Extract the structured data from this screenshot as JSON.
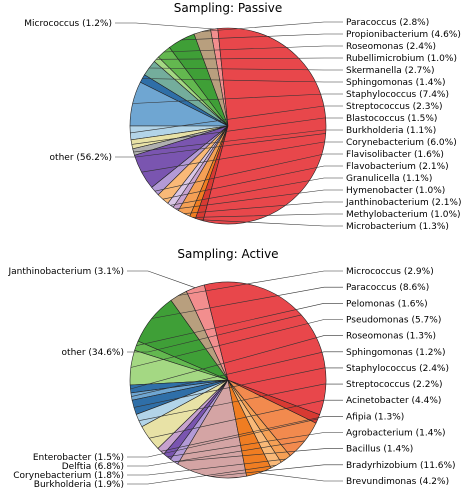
{
  "chart_data": [
    {
      "type": "pie",
      "title": "Sampling: Passive",
      "start_angle_deg": 96,
      "slices": [
        {
          "label": "Micrococcus (1.2%)",
          "value": 1.2,
          "color": "#f28e8e",
          "side": "left"
        },
        {
          "label": "Paracoccus (2.8%)",
          "value": 2.8,
          "color": "#b89f7e",
          "side": "right"
        },
        {
          "label": "Propionibacterium (4.6%)",
          "value": 4.6,
          "color": "#3f9f37",
          "side": "right"
        },
        {
          "label": "Roseomonas (2.4%)",
          "value": 2.4,
          "color": "#63b84f",
          "side": "right"
        },
        {
          "label": "Rubellimicrobium (1.0%)",
          "value": 1.0,
          "color": "#a4d883",
          "side": "right"
        },
        {
          "label": "Skermanella (2.7%)",
          "value": 2.7,
          "color": "#74ad9c",
          "side": "right"
        },
        {
          "label": "Sphingomonas (1.4%)",
          "value": 1.4,
          "color": "#2f6fa8",
          "side": "right"
        },
        {
          "label": "Staphylococcus (7.4%)",
          "value": 7.4,
          "color": "#6fa6d2",
          "side": "right"
        },
        {
          "label": "Streptococcus (2.3%)",
          "value": 2.3,
          "color": "#b2d4e8",
          "side": "right"
        },
        {
          "label": "Blastococcus (1.5%)",
          "value": 1.5,
          "color": "#e8e2a6",
          "side": "right"
        },
        {
          "label": "Burkholderia (1.1%)",
          "value": 1.1,
          "color": "#b0b0b0",
          "side": "right"
        },
        {
          "label": "Corynebacterium (6.0%)",
          "value": 6.0,
          "color": "#7a55b0",
          "side": "right"
        },
        {
          "label": "Flavisolibacter (1.6%)",
          "value": 1.6,
          "color": "#b39ad6",
          "side": "right"
        },
        {
          "label": "Flavobacterium (2.1%)",
          "value": 2.1,
          "color": "#f9b978",
          "side": "right"
        },
        {
          "label": "Granulicella (1.1%)",
          "value": 1.1,
          "color": "#d9c6e6",
          "side": "right"
        },
        {
          "label": "Hymenobacter (1.0%)",
          "value": 1.0,
          "color": "#c7a2cf",
          "side": "right"
        },
        {
          "label": "Janthinobacterium (2.1%)",
          "value": 2.1,
          "color": "#f5a055",
          "side": "right"
        },
        {
          "label": "Methylobacterium (1.0%)",
          "value": 1.0,
          "color": "#f07d22",
          "side": "right"
        },
        {
          "label": "Microbacterium (1.3%)",
          "value": 1.3,
          "color": "#d83a32",
          "side": "right"
        },
        {
          "label": "other (56.2%)",
          "value": 56.2,
          "color": "#e8474b",
          "side": "left"
        }
      ]
    },
    {
      "type": "pie",
      "title": "Sampling: Active",
      "start_angle_deg": 104,
      "slices": [
        {
          "label": "Janthinobacterium (3.1%)",
          "value": 3.1,
          "color": "#f28e8e",
          "side": "left"
        },
        {
          "label": "Micrococcus (2.9%)",
          "value": 2.9,
          "color": "#b89f7e",
          "side": "right"
        },
        {
          "label": "Paracoccus (8.6%)",
          "value": 8.6,
          "color": "#3f9f37",
          "side": "right"
        },
        {
          "label": "Pelomonas (1.6%)",
          "value": 1.6,
          "color": "#63b84f",
          "side": "right"
        },
        {
          "label": "Pseudomonas (5.7%)",
          "value": 5.7,
          "color": "#a4d883",
          "side": "right"
        },
        {
          "label": "Roseomonas (1.3%)",
          "value": 1.3,
          "color": "#2f6fa8",
          "side": "right"
        },
        {
          "label": "Sphingomonas (1.2%)",
          "value": 1.2,
          "color": "#6fa6d2",
          "side": "right"
        },
        {
          "label": "Staphylococcus (2.4%)",
          "value": 2.4,
          "color": "#2f6fa8",
          "side": "right"
        },
        {
          "label": "Streptococcus (2.2%)",
          "value": 2.2,
          "color": "#b2d4e8",
          "side": "right"
        },
        {
          "label": "Acinetobacter (4.4%)",
          "value": 4.4,
          "color": "#e8e2a6",
          "side": "right"
        },
        {
          "label": "Afipia (1.3%)",
          "value": 1.3,
          "color": "#c7a2cf",
          "side": "right"
        },
        {
          "label": "Agrobacterium (1.4%)",
          "value": 1.4,
          "color": "#7a55b0",
          "side": "right"
        },
        {
          "label": "Bacillus (1.4%)",
          "value": 1.4,
          "color": "#b39ad6",
          "side": "right"
        },
        {
          "label": "Bradyrhizobium (11.6%)",
          "value": 11.6,
          "color": "#d4a4a4",
          "side": "right"
        },
        {
          "label": "Brevundimonas (4.2%)",
          "value": 4.2,
          "color": "#f07d22",
          "side": "right"
        },
        {
          "label": "Burkholderia (1.9%)",
          "value": 1.9,
          "color": "#f9b978",
          "side": "left"
        },
        {
          "label": "Corynebacterium (1.8%)",
          "value": 1.8,
          "color": "#f5a055",
          "side": "left"
        },
        {
          "label": "Delftia (6.8%)",
          "value": 6.8,
          "color": "#f28a4e",
          "side": "left"
        },
        {
          "label": "Enterobacter (1.5%)",
          "value": 1.5,
          "color": "#d83a32",
          "side": "left"
        },
        {
          "label": "other (34.6%)",
          "value": 34.6,
          "color": "#e8474b",
          "side": "left"
        }
      ]
    }
  ]
}
